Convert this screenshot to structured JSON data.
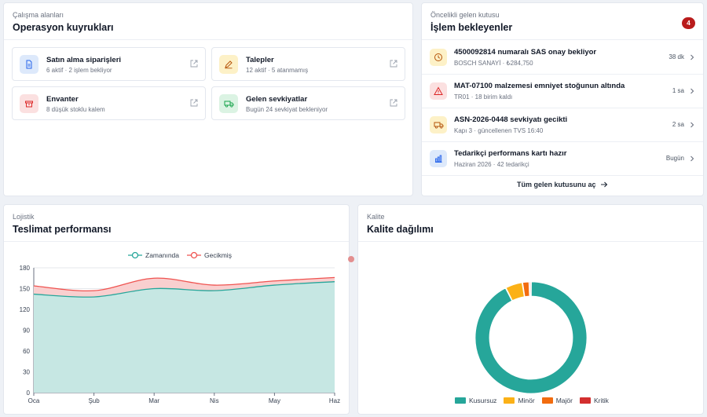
{
  "workspaces": {
    "eyebrow": "Çalışma alanları",
    "title": "Operasyon kuyrukları",
    "items": [
      {
        "title": "Satın alma siparişleri",
        "sub": "6 aktif · 2 işlem bekliyor",
        "icon": "document-icon",
        "bg": "#dde9fb",
        "fg": "#2563eb"
      },
      {
        "title": "Talepler",
        "sub": "12 aktif · 5 atanmamış",
        "icon": "pencil-icon",
        "bg": "#fdf1c7",
        "fg": "#b45309"
      },
      {
        "title": "Envanter",
        "sub": "8 düşük stoklu kalem",
        "icon": "box-icon",
        "bg": "#fbe0e0",
        "fg": "#dc2626"
      },
      {
        "title": "Gelen sevkiyatlar",
        "sub": "Bugün 24 sevkiyat bekleniyor",
        "icon": "truck-icon",
        "bg": "#dbf3e3",
        "fg": "#16a34a"
      }
    ]
  },
  "inbox": {
    "eyebrow": "Öncelikli gelen kutusu",
    "title": "İşlem bekleyenler",
    "badge": "4",
    "items": [
      {
        "title": "4500092814 numaralı SAS onay bekliyor",
        "sub": "BOSCH SANAYİ · ₺284,750",
        "time": "38 dk",
        "icon": "clock-icon",
        "bg": "#fdf1c7",
        "fg": "#b45309"
      },
      {
        "title": "MAT-07100 malzemesi emniyet stoğunun altında",
        "sub": "TR01 · 18 birim kaldı",
        "time": "1 sa",
        "icon": "warning-icon",
        "bg": "#fbe0e0",
        "fg": "#dc2626"
      },
      {
        "title": "ASN-2026-0448 sevkiyatı gecikti",
        "sub": "Kapı 3 · güncellenen TVS 16:40",
        "time": "2 sa",
        "icon": "truck-icon",
        "bg": "#fdf1c7",
        "fg": "#b45309"
      },
      {
        "title": "Tedarikçi performans kartı hazır",
        "sub": "Haziran 2026 · 42 tedarikçi",
        "time": "Bugün",
        "icon": "bar-chart-icon",
        "bg": "#dde9fb",
        "fg": "#2563eb"
      }
    ],
    "footer": "Tüm gelen kutusunu aç"
  },
  "delivery": {
    "eyebrow": "Lojistik",
    "title": "Teslimat performansı"
  },
  "quality": {
    "eyebrow": "Kalite",
    "title": "Kalite dağılımı"
  },
  "chart_data": [
    {
      "type": "area",
      "stacked": true,
      "categories": [
        "Oca",
        "Şub",
        "Mar",
        "Nis",
        "May",
        "Haz"
      ],
      "series": [
        {
          "name": "Zamanında",
          "values": [
            142,
            138,
            150,
            147,
            155,
            160
          ],
          "color": "#26a69a"
        },
        {
          "name": "Gecikmiş",
          "values": [
            12,
            9,
            15,
            8,
            6,
            6
          ],
          "color": "#ef5350"
        }
      ],
      "ylim": [
        0,
        180
      ],
      "yticks": [
        0,
        30,
        60,
        90,
        120,
        150,
        180
      ],
      "grid": true,
      "legend": "top-center"
    },
    {
      "type": "pie",
      "donut": true,
      "labels": [
        "Kusursuz",
        "Minör",
        "Majör",
        "Kritik"
      ],
      "values": [
        92.5,
        5,
        2,
        0.5
      ],
      "colors": [
        "#26a69a",
        "#fbb117",
        "#f26c0f",
        "#d32f2f"
      ],
      "legend": "bottom"
    }
  ]
}
